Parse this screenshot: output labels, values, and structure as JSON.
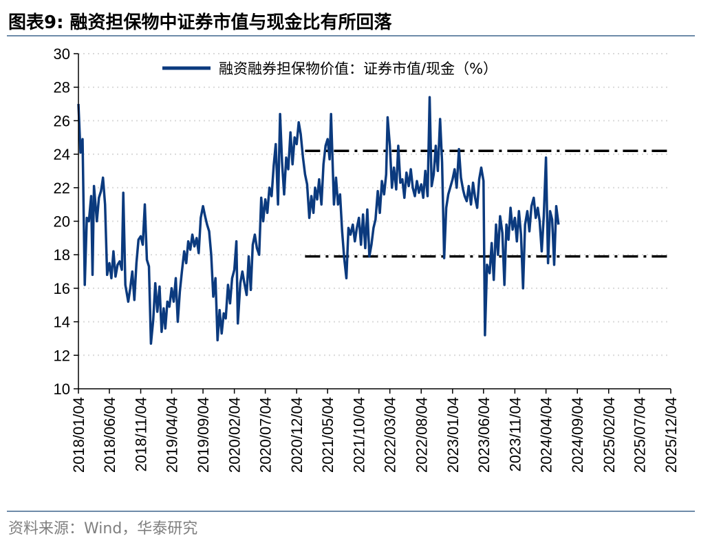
{
  "header": {
    "title": "图表9:   融资担保物中证券市值与现金比有所回落"
  },
  "footer": {
    "source": "资料来源：Wind，华泰研究"
  },
  "colors": {
    "series": "#0b3a7e",
    "reference": "#000000",
    "grid": "#d9d9d9",
    "rule": "#6d8aa8"
  },
  "chart_data": {
    "type": "line",
    "title": "",
    "xlabel": "",
    "ylabel": "",
    "ylim": [
      10,
      30
    ],
    "yticks": [
      10,
      12,
      14,
      16,
      18,
      20,
      22,
      24,
      26,
      28,
      30
    ],
    "xlim": [
      "2018-01-04",
      "2025-12-04"
    ],
    "xtick_labels": [
      "2018/01/04",
      "2018/06/04",
      "2018/11/04",
      "2019/04/04",
      "2019/09/04",
      "2020/02/04",
      "2020/07/04",
      "2020/12/04",
      "2021/05/04",
      "2021/10/04",
      "2022/03/04",
      "2022/08/04",
      "2023/01/04",
      "2023/06/04",
      "2023/11/04",
      "2024/04/04",
      "2024/09/04",
      "2025/02/04",
      "2025/07/04",
      "2025/12/04"
    ],
    "grid": true,
    "legend_position": "top",
    "series": [
      {
        "name": "融资融券担保物价值：证券市值/现金（%）",
        "style": "solid",
        "points": [
          [
            "2018-01-04",
            27.0
          ],
          [
            "2018-01-14",
            24.1
          ],
          [
            "2018-01-24",
            24.9
          ],
          [
            "2018-02-04",
            16.2
          ],
          [
            "2018-02-14",
            20.2
          ],
          [
            "2018-02-24",
            20.0
          ],
          [
            "2018-03-07",
            21.5
          ],
          [
            "2018-03-14",
            16.8
          ],
          [
            "2018-03-21",
            22.1
          ],
          [
            "2018-04-04",
            20.0
          ],
          [
            "2018-04-14",
            21.4
          ],
          [
            "2018-04-24",
            21.8
          ],
          [
            "2018-05-04",
            22.6
          ],
          [
            "2018-05-14",
            21.0
          ],
          [
            "2018-05-24",
            16.8
          ],
          [
            "2018-06-04",
            17.5
          ],
          [
            "2018-06-14",
            16.6
          ],
          [
            "2018-06-24",
            18.2
          ],
          [
            "2018-07-04",
            16.7
          ],
          [
            "2018-07-14",
            17.4
          ],
          [
            "2018-07-24",
            17.6
          ],
          [
            "2018-08-04",
            17.1
          ],
          [
            "2018-08-11",
            21.7
          ],
          [
            "2018-08-21",
            16.2
          ],
          [
            "2018-09-04",
            15.2
          ],
          [
            "2018-09-14",
            16.0
          ],
          [
            "2018-09-24",
            17.0
          ],
          [
            "2018-10-04",
            15.3
          ],
          [
            "2018-10-14",
            17.5
          ],
          [
            "2018-10-24",
            18.9
          ],
          [
            "2018-11-04",
            19.1
          ],
          [
            "2018-11-14",
            18.6
          ],
          [
            "2018-11-24",
            21.0
          ],
          [
            "2018-12-04",
            17.7
          ],
          [
            "2018-12-14",
            17.3
          ],
          [
            "2018-12-24",
            12.7
          ],
          [
            "2019-01-04",
            14.1
          ],
          [
            "2019-01-14",
            16.3
          ],
          [
            "2019-01-24",
            14.6
          ],
          [
            "2019-02-04",
            16.1
          ],
          [
            "2019-02-14",
            13.4
          ],
          [
            "2019-02-24",
            14.8
          ],
          [
            "2019-03-04",
            13.6
          ],
          [
            "2019-03-14",
            15.2
          ],
          [
            "2019-03-24",
            14.9
          ],
          [
            "2019-04-04",
            16.0
          ],
          [
            "2019-04-14",
            15.2
          ],
          [
            "2019-04-24",
            16.6
          ],
          [
            "2019-05-04",
            14.0
          ],
          [
            "2019-05-14",
            15.8
          ],
          [
            "2019-05-24",
            17.0
          ],
          [
            "2019-06-04",
            18.2
          ],
          [
            "2019-06-14",
            17.5
          ],
          [
            "2019-06-24",
            18.8
          ],
          [
            "2019-07-04",
            18.3
          ],
          [
            "2019-07-14",
            19.2
          ],
          [
            "2019-07-24",
            18.5
          ],
          [
            "2019-08-04",
            19.0
          ],
          [
            "2019-08-14",
            18.1
          ],
          [
            "2019-08-24",
            20.2
          ],
          [
            "2019-09-04",
            20.9
          ],
          [
            "2019-09-14",
            20.3
          ],
          [
            "2019-09-24",
            19.8
          ],
          [
            "2019-10-04",
            19.4
          ],
          [
            "2019-10-14",
            18.0
          ],
          [
            "2019-10-24",
            15.5
          ],
          [
            "2019-11-04",
            16.6
          ],
          [
            "2019-11-14",
            12.9
          ],
          [
            "2019-11-24",
            14.7
          ],
          [
            "2019-12-04",
            13.3
          ],
          [
            "2019-12-14",
            14.5
          ],
          [
            "2019-12-24",
            14.2
          ],
          [
            "2020-01-04",
            16.2
          ],
          [
            "2020-01-14",
            15.1
          ],
          [
            "2020-01-24",
            16.6
          ],
          [
            "2020-02-04",
            17.1
          ],
          [
            "2020-02-14",
            18.8
          ],
          [
            "2020-02-21",
            13.9
          ],
          [
            "2020-03-04",
            16.3
          ],
          [
            "2020-03-14",
            17.0
          ],
          [
            "2020-03-24",
            16.3
          ],
          [
            "2020-04-04",
            15.6
          ],
          [
            "2020-04-14",
            17.9
          ],
          [
            "2020-04-24",
            15.9
          ],
          [
            "2020-05-04",
            18.6
          ],
          [
            "2020-05-14",
            19.2
          ],
          [
            "2020-05-24",
            18.4
          ],
          [
            "2020-06-04",
            18.0
          ],
          [
            "2020-06-14",
            21.4
          ],
          [
            "2020-06-24",
            20.0
          ],
          [
            "2020-07-04",
            21.3
          ],
          [
            "2020-07-14",
            20.5
          ],
          [
            "2020-07-24",
            22.0
          ],
          [
            "2020-08-04",
            21.5
          ],
          [
            "2020-08-14",
            23.3
          ],
          [
            "2020-08-24",
            24.6
          ],
          [
            "2020-09-04",
            21.0
          ],
          [
            "2020-09-14",
            26.4
          ],
          [
            "2020-09-24",
            23.5
          ],
          [
            "2020-10-04",
            21.6
          ],
          [
            "2020-10-14",
            23.8
          ],
          [
            "2020-10-24",
            23.1
          ],
          [
            "2020-11-04",
            25.3
          ],
          [
            "2020-11-14",
            23.4
          ],
          [
            "2020-11-24",
            25.0
          ],
          [
            "2020-12-04",
            24.6
          ],
          [
            "2020-12-14",
            25.9
          ],
          [
            "2020-12-24",
            25.2
          ],
          [
            "2021-01-04",
            23.8
          ],
          [
            "2021-01-14",
            22.8
          ],
          [
            "2021-01-24",
            22.2
          ],
          [
            "2021-02-04",
            20.2
          ],
          [
            "2021-02-14",
            21.5
          ],
          [
            "2021-02-24",
            20.5
          ],
          [
            "2021-03-04",
            22.0
          ],
          [
            "2021-03-14",
            21.3
          ],
          [
            "2021-03-24",
            22.5
          ],
          [
            "2021-04-04",
            21.0
          ],
          [
            "2021-04-14",
            23.4
          ],
          [
            "2021-04-24",
            24.5
          ],
          [
            "2021-05-04",
            24.9
          ],
          [
            "2021-05-14",
            23.7
          ],
          [
            "2021-05-21",
            26.4
          ],
          [
            "2021-06-04",
            21.0
          ],
          [
            "2021-06-14",
            22.6
          ],
          [
            "2021-06-24",
            21.0
          ],
          [
            "2021-07-04",
            21.6
          ],
          [
            "2021-07-14",
            19.4
          ],
          [
            "2021-07-24",
            17.8
          ],
          [
            "2021-08-04",
            16.6
          ],
          [
            "2021-08-14",
            19.6
          ],
          [
            "2021-08-24",
            19.2
          ],
          [
            "2021-09-04",
            19.8
          ],
          [
            "2021-09-14",
            18.8
          ],
          [
            "2021-09-24",
            19.6
          ],
          [
            "2021-10-04",
            20.2
          ],
          [
            "2021-10-14",
            18.6
          ],
          [
            "2021-10-24",
            20.4
          ],
          [
            "2021-11-04",
            18.4
          ],
          [
            "2021-11-14",
            20.7
          ],
          [
            "2021-11-24",
            17.9
          ],
          [
            "2021-12-04",
            18.6
          ],
          [
            "2021-12-14",
            19.6
          ],
          [
            "2021-12-24",
            20.1
          ],
          [
            "2022-01-04",
            21.8
          ],
          [
            "2022-01-14",
            20.5
          ],
          [
            "2022-01-24",
            22.4
          ],
          [
            "2022-02-04",
            21.6
          ],
          [
            "2022-02-14",
            22.8
          ],
          [
            "2022-02-21",
            26.2
          ],
          [
            "2022-03-04",
            24.5
          ],
          [
            "2022-03-14",
            22.0
          ],
          [
            "2022-03-24",
            23.2
          ],
          [
            "2022-04-04",
            21.9
          ],
          [
            "2022-04-14",
            24.5
          ],
          [
            "2022-04-24",
            22.3
          ],
          [
            "2022-05-04",
            22.5
          ],
          [
            "2022-05-14",
            21.4
          ],
          [
            "2022-05-24",
            22.9
          ],
          [
            "2022-06-04",
            22.1
          ],
          [
            "2022-06-14",
            23.1
          ],
          [
            "2022-06-24",
            22.0
          ],
          [
            "2022-07-04",
            21.5
          ],
          [
            "2022-07-14",
            22.4
          ],
          [
            "2022-07-24",
            21.7
          ],
          [
            "2022-08-04",
            22.2
          ],
          [
            "2022-08-14",
            21.4
          ],
          [
            "2022-08-24",
            23.0
          ],
          [
            "2022-09-04",
            21.5
          ],
          [
            "2022-09-14",
            27.4
          ],
          [
            "2022-09-24",
            22.1
          ],
          [
            "2022-10-04",
            22.8
          ],
          [
            "2022-10-14",
            24.5
          ],
          [
            "2022-10-24",
            23.0
          ],
          [
            "2022-11-04",
            26.1
          ],
          [
            "2022-11-14",
            23.5
          ],
          [
            "2022-11-24",
            17.8
          ],
          [
            "2022-12-04",
            20.8
          ],
          [
            "2022-12-14",
            21.6
          ],
          [
            "2023-01-04",
            22.5
          ],
          [
            "2023-01-14",
            23.1
          ],
          [
            "2023-01-24",
            22.0
          ],
          [
            "2023-02-04",
            24.3
          ],
          [
            "2023-02-14",
            22.6
          ],
          [
            "2023-02-24",
            21.9
          ],
          [
            "2023-03-04",
            21.5
          ],
          [
            "2023-03-14",
            21.2
          ],
          [
            "2023-03-24",
            22.1
          ],
          [
            "2023-04-04",
            21.0
          ],
          [
            "2023-04-14",
            22.3
          ],
          [
            "2023-04-24",
            21.4
          ],
          [
            "2023-05-04",
            20.8
          ],
          [
            "2023-05-14",
            22.5
          ],
          [
            "2023-05-24",
            23.2
          ],
          [
            "2023-06-04",
            22.4
          ],
          [
            "2023-06-11",
            13.2
          ],
          [
            "2023-06-21",
            17.4
          ],
          [
            "2023-07-04",
            16.9
          ],
          [
            "2023-07-14",
            18.7
          ],
          [
            "2023-07-24",
            16.5
          ],
          [
            "2023-08-04",
            19.8
          ],
          [
            "2023-08-14",
            18.0
          ],
          [
            "2023-08-24",
            20.3
          ],
          [
            "2023-09-04",
            19.3
          ],
          [
            "2023-09-14",
            16.2
          ],
          [
            "2023-09-24",
            19.8
          ],
          [
            "2023-10-04",
            18.9
          ],
          [
            "2023-10-14",
            20.8
          ],
          [
            "2023-10-24",
            19.5
          ],
          [
            "2023-11-04",
            20.2
          ],
          [
            "2023-11-14",
            18.8
          ],
          [
            "2023-11-24",
            20.6
          ],
          [
            "2023-12-04",
            19.2
          ],
          [
            "2023-12-14",
            16.0
          ],
          [
            "2023-12-24",
            19.8
          ],
          [
            "2024-01-04",
            20.6
          ],
          [
            "2024-01-14",
            19.4
          ],
          [
            "2024-01-24",
            20.9
          ],
          [
            "2024-02-04",
            21.4
          ],
          [
            "2024-02-14",
            20.2
          ],
          [
            "2024-02-24",
            20.8
          ],
          [
            "2024-03-04",
            20.0
          ],
          [
            "2024-03-14",
            18.2
          ],
          [
            "2024-03-24",
            20.3
          ],
          [
            "2024-04-04",
            23.8
          ],
          [
            "2024-04-14",
            17.5
          ],
          [
            "2024-04-24",
            20.6
          ],
          [
            "2024-05-04",
            20.1
          ],
          [
            "2024-05-14",
            17.4
          ],
          [
            "2024-05-24",
            20.9
          ],
          [
            "2024-06-04",
            19.8
          ]
        ]
      }
    ],
    "reference_lines": [
      {
        "style": "dash-dot",
        "y": 24.2,
        "x_start": "2021-01-14",
        "x_end": "2025-12-04"
      },
      {
        "style": "dash-dot",
        "y": 17.9,
        "x_start": "2021-01-14",
        "x_end": "2025-12-04"
      }
    ]
  }
}
